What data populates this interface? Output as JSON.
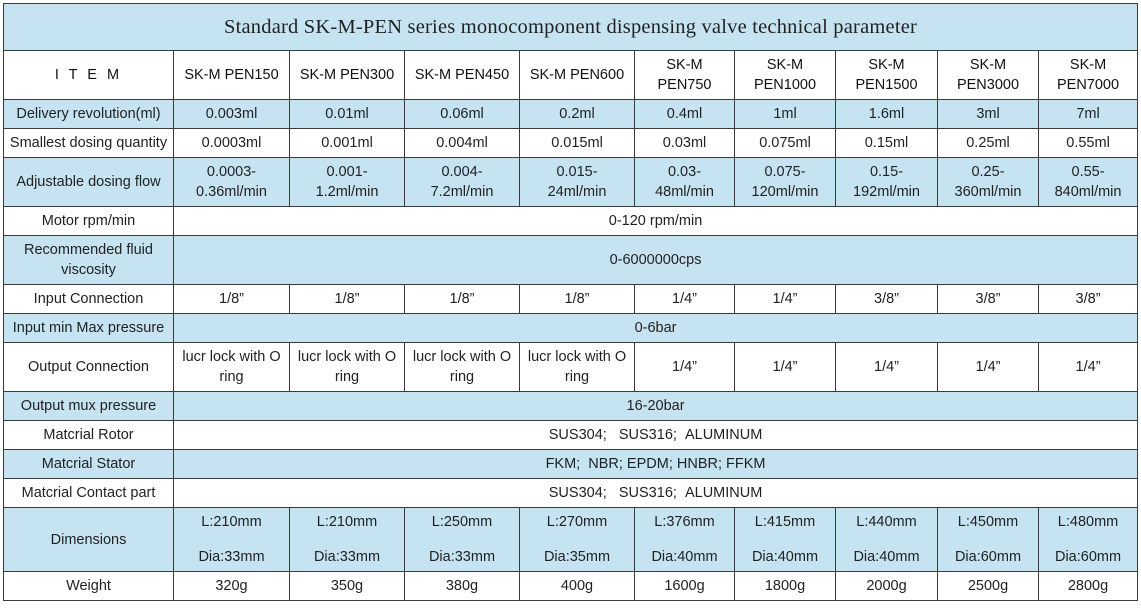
{
  "title": "Standard SK-M-PEN series monocomponent dispensing valve technical parameter",
  "header": {
    "item": "I T E M",
    "models": [
      [
        "SK-M PEN150"
      ],
      [
        "SK-M PEN300"
      ],
      [
        "SK-M PEN450"
      ],
      [
        "SK-M PEN600"
      ],
      [
        "SK-M",
        "PEN750"
      ],
      [
        "SK-M",
        "PEN1000"
      ],
      [
        "SK-M",
        "PEN1500"
      ],
      [
        "SK-M",
        "PEN3000"
      ],
      [
        "SK-M",
        "PEN7000"
      ]
    ]
  },
  "rows": [
    {
      "label": "Delivery revolution(ml)",
      "style": "blue",
      "height": 29,
      "cells": [
        [
          "0.003ml"
        ],
        [
          "0.01ml"
        ],
        [
          "0.06ml"
        ],
        [
          "0.2ml"
        ],
        [
          "0.4ml"
        ],
        [
          "1ml"
        ],
        [
          "1.6ml"
        ],
        [
          "3ml"
        ],
        [
          "7ml"
        ]
      ]
    },
    {
      "label": "Smallest dosing quantity",
      "style": "white",
      "height": 29,
      "cells": [
        [
          "0.0003ml"
        ],
        [
          "0.001ml"
        ],
        [
          "0.004ml"
        ],
        [
          "0.015ml"
        ],
        [
          "0.03ml"
        ],
        [
          "0.075ml"
        ],
        [
          "0.15ml"
        ],
        [
          "0.25ml"
        ],
        [
          "0.55ml"
        ]
      ]
    },
    {
      "label": "Adjustable dosing flow",
      "style": "blue",
      "height": 49,
      "cells": [
        [
          "0.0003-",
          "0.36ml/min"
        ],
        [
          "0.001-",
          "1.2ml/min"
        ],
        [
          "0.004-",
          "7.2ml/min"
        ],
        [
          "0.015-",
          "24ml/min"
        ],
        [
          "0.03-",
          "48ml/min"
        ],
        [
          "0.075-",
          "120ml/min"
        ],
        [
          "0.15-",
          "192ml/min"
        ],
        [
          "0.25-",
          "360ml/min"
        ],
        [
          "0.55-",
          "840ml/min"
        ]
      ]
    },
    {
      "label": "Motor rpm/min",
      "style": "white",
      "height": 29,
      "span": [
        "0-120 rpm/min"
      ]
    },
    {
      "label": "Recommended fluid viscosity",
      "style": "blue",
      "height": 49,
      "span": [
        "0-6000000cps"
      ]
    },
    {
      "label": "Input Connection",
      "style": "white",
      "height": 29,
      "cells": [
        [
          "1/8”"
        ],
        [
          "1/8”"
        ],
        [
          "1/8”"
        ],
        [
          "1/8”"
        ],
        [
          "1/4”"
        ],
        [
          "1/4”"
        ],
        [
          "3/8”"
        ],
        [
          "3/8”"
        ],
        [
          "3/8”"
        ]
      ]
    },
    {
      "label": "Input min Max pressure",
      "style": "blue",
      "height": 29,
      "span": [
        "0-6bar"
      ]
    },
    {
      "label": "Output Connection",
      "style": "white",
      "height": 49,
      "cells": [
        [
          "lucr lock with O",
          "ring"
        ],
        [
          "lucr lock with O",
          "ring"
        ],
        [
          "lucr lock with O",
          "ring"
        ],
        [
          "lucr lock with O",
          "ring"
        ],
        [
          "1/4”"
        ],
        [
          "1/4”"
        ],
        [
          "1/4”"
        ],
        [
          "1/4”"
        ],
        [
          "1/4”"
        ]
      ]
    },
    {
      "label": "Output mux pressure",
      "style": "blue",
      "height": 29,
      "span": [
        "16-20bar"
      ]
    },
    {
      "label": "Matcrial Rotor",
      "style": "white",
      "height": 29,
      "span": [
        "SUS304;   SUS316;  ALUMINUM"
      ]
    },
    {
      "label": "Matcrial Stator",
      "style": "blue",
      "height": 29,
      "span": [
        "FKM;  NBR; EPDM; HNBR; FFKM"
      ]
    },
    {
      "label": "Matcrial Contact part",
      "style": "white",
      "height": 29,
      "span": [
        "SUS304;   SUS316;  ALUMINUM"
      ]
    },
    {
      "label": "Dimensions",
      "style": "blue",
      "height": 64,
      "dims": true,
      "cells": [
        [
          "L:210mm",
          "Dia:33mm"
        ],
        [
          "L:210mm",
          "Dia:33mm"
        ],
        [
          "L:250mm",
          "Dia:33mm"
        ],
        [
          "L:270mm",
          "Dia:35mm"
        ],
        [
          "L:376mm",
          "Dia:40mm"
        ],
        [
          "L:415mm",
          "Dia:40mm"
        ],
        [
          "L:440mm",
          "Dia:40mm"
        ],
        [
          "L:450mm",
          "Dia:60mm"
        ],
        [
          "L:480mm",
          "Dia:60mm"
        ]
      ]
    },
    {
      "label": "Weight",
      "style": "white",
      "height": 29,
      "cells": [
        [
          "320g"
        ],
        [
          "350g"
        ],
        [
          "380g"
        ],
        [
          "400g"
        ],
        [
          "1600g"
        ],
        [
          "1800g"
        ],
        [
          "2000g"
        ],
        [
          "2500g"
        ],
        [
          "2800g"
        ]
      ]
    }
  ]
}
